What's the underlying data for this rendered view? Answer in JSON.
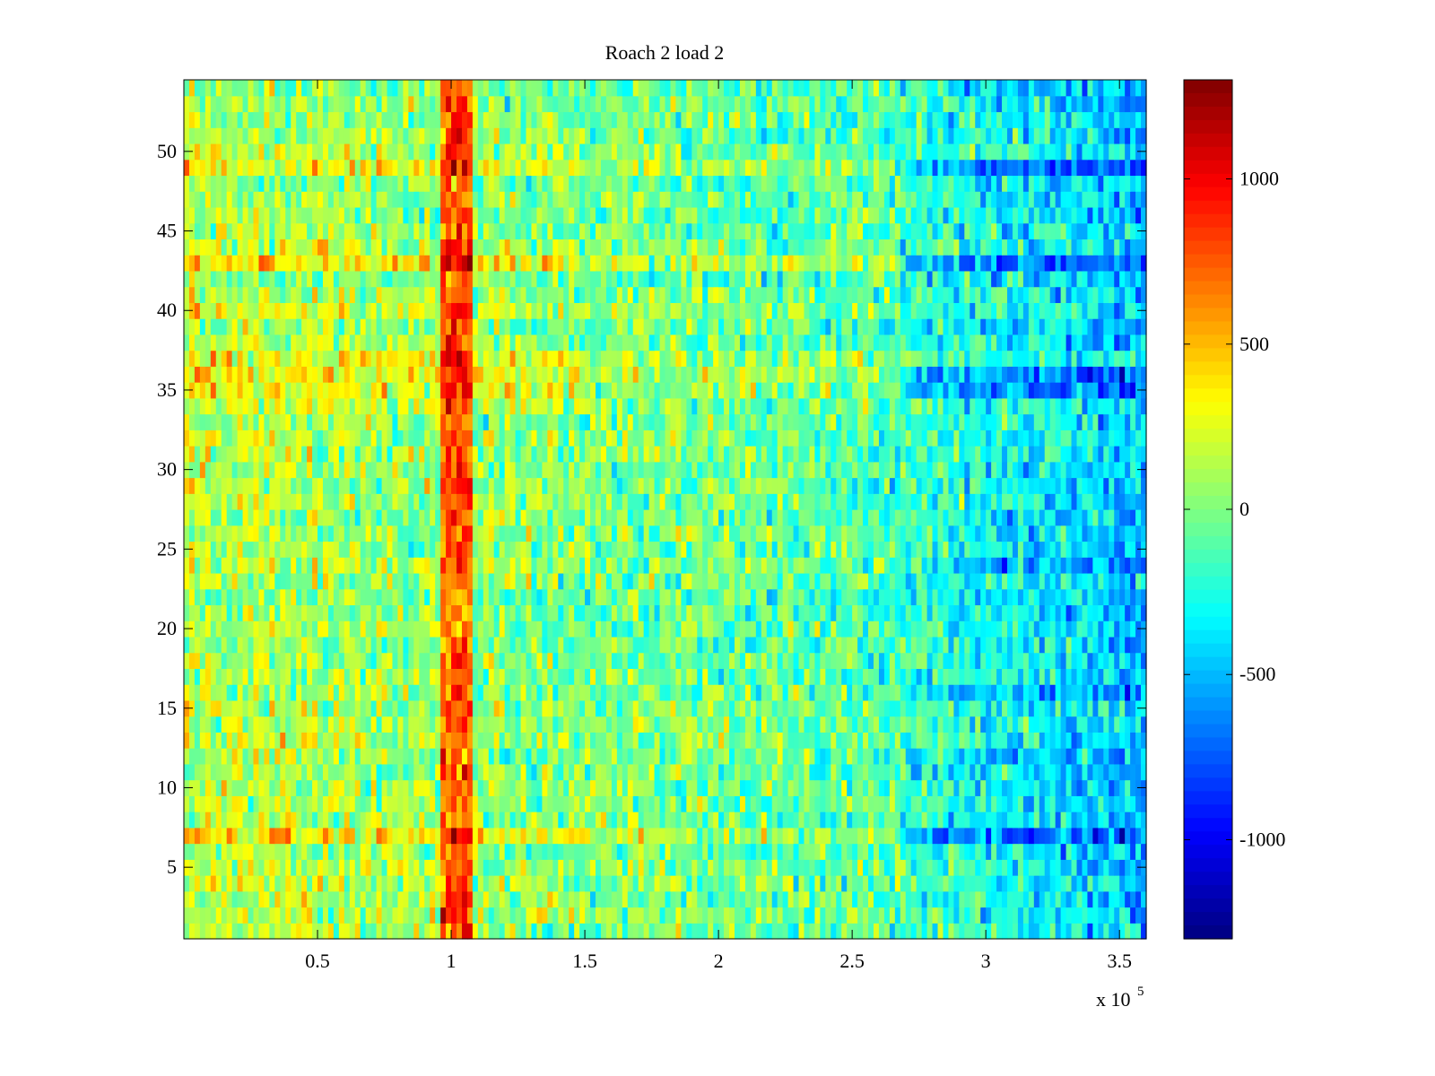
{
  "chart_data": {
    "type": "heatmap",
    "title": "Roach 2 load 2",
    "xlabel": "",
    "ylabel": "",
    "x_multiplier_label": "x 10",
    "x_multiplier_exponent": "5",
    "xlim": [
      0,
      3.6
    ],
    "ylim": [
      0.5,
      54.5
    ],
    "x_ticks": [
      0.5,
      1,
      1.5,
      2,
      2.5,
      3,
      3.5
    ],
    "x_tick_labels": [
      "0.5",
      "1",
      "1.5",
      "2",
      "2.5",
      "3",
      "3.5"
    ],
    "y_ticks": [
      5,
      10,
      15,
      20,
      25,
      30,
      35,
      40,
      45,
      50
    ],
    "y_tick_labels": [
      "5",
      "10",
      "15",
      "20",
      "25",
      "30",
      "35",
      "40",
      "45",
      "50"
    ],
    "rows": 54,
    "colormap": "jet",
    "clim": [
      -1300,
      1300
    ],
    "colorbar_ticks": [
      1000,
      500,
      0,
      -500,
      -1000
    ],
    "colorbar_tick_labels": [
      "1000",
      "500",
      "0",
      "-500",
      "-1000"
    ],
    "features": {
      "hot_column_band_x": [
        0.97,
        1.08
      ],
      "hot_column_value": 750,
      "warm_left_region_value": 150,
      "cool_right_region_value": -350,
      "hot_rows": [
        7,
        35,
        36,
        37,
        43,
        49
      ],
      "cold_right_rows": [
        7,
        16,
        24,
        35,
        36,
        43,
        49
      ]
    }
  },
  "colors": {
    "frame": "#000000",
    "background": "#ffffff"
  }
}
